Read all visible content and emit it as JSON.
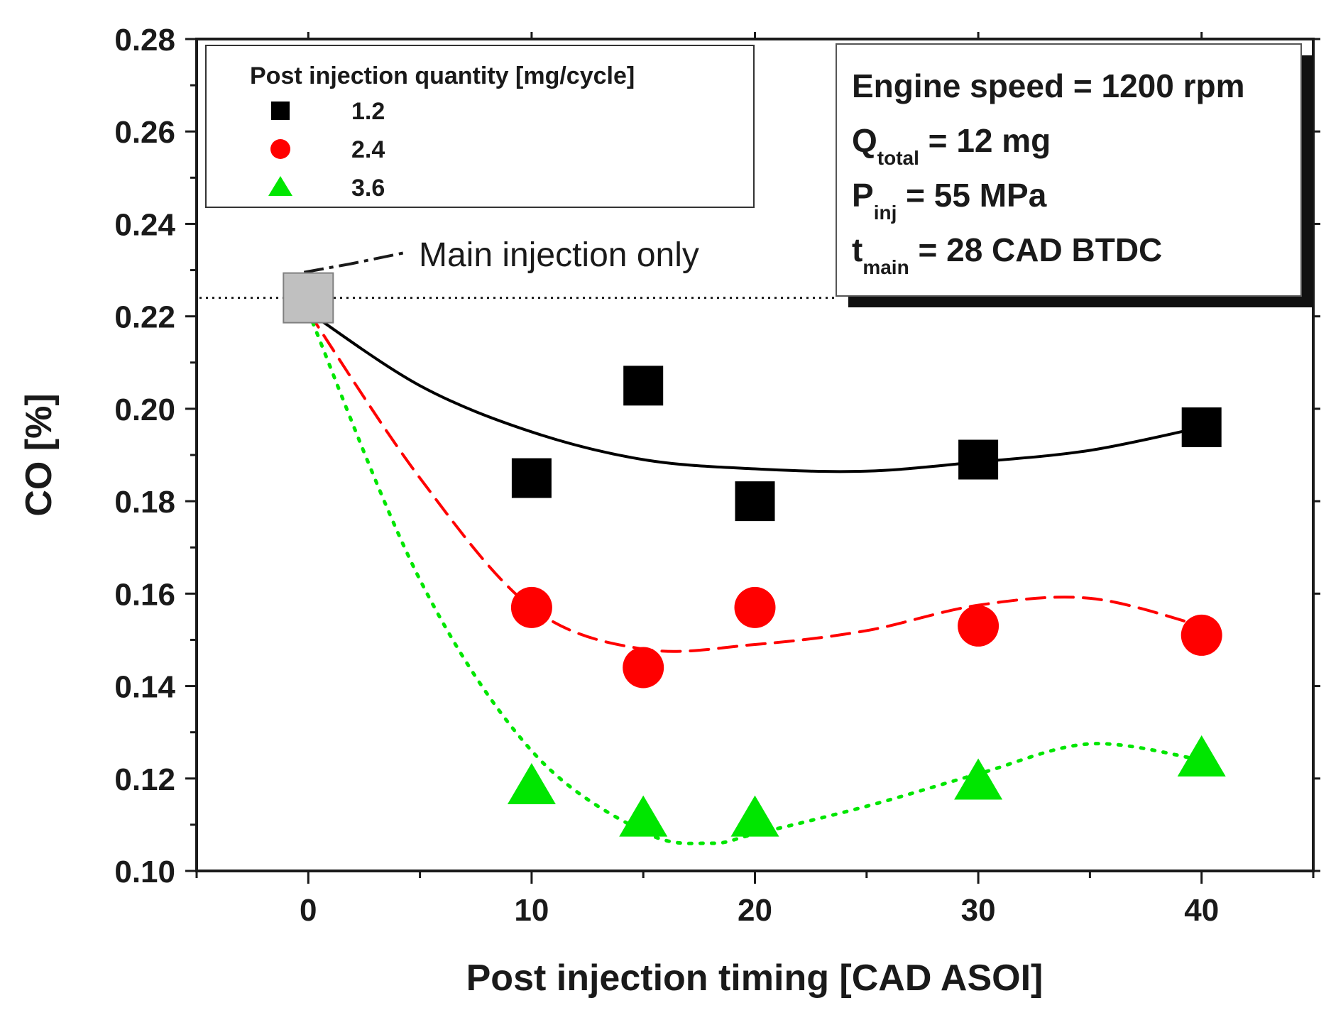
{
  "chart_data": {
    "type": "scatter",
    "title": "",
    "xlabel": "Post injection timing [CAD ASOI]",
    "ylabel": "CO [%]",
    "xlim": [
      -5,
      45
    ],
    "ylim": [
      0.1,
      0.28
    ],
    "x_ticks": [
      0,
      10,
      20,
      30,
      40
    ],
    "x_tick_labels": [
      "0",
      "10",
      "20",
      "30",
      "40"
    ],
    "x_minor_ticks": [
      -5,
      5,
      15,
      25,
      35,
      45
    ],
    "y_ticks": [
      0.1,
      0.12,
      0.14,
      0.16,
      0.18,
      0.2,
      0.22,
      0.24,
      0.26,
      0.28
    ],
    "y_tick_labels": [
      "0.10",
      "0.12",
      "0.14",
      "0.16",
      "0.18",
      "0.20",
      "0.22",
      "0.24",
      "0.26",
      "0.28"
    ],
    "legend": {
      "title": "Post injection quantity [mg/cycle]",
      "placement": "top-left"
    },
    "series": [
      {
        "name": "1.2",
        "marker": "square",
        "color": "#000000",
        "line_style": "solid",
        "x": [
          10,
          15,
          20,
          30,
          40
        ],
        "values": [
          0.185,
          0.205,
          0.18,
          0.189,
          0.196
        ],
        "fit_x": [
          0,
          5,
          10,
          15,
          20,
          25,
          30,
          35,
          40
        ],
        "fit_y": [
          0.221,
          0.205,
          0.195,
          0.189,
          0.187,
          0.1865,
          0.1885,
          0.191,
          0.196
        ]
      },
      {
        "name": "2.4",
        "marker": "circle",
        "color": "#ff0000",
        "line_style": "dashed",
        "x": [
          10,
          15,
          20,
          30,
          40
        ],
        "values": [
          0.157,
          0.144,
          0.157,
          0.153,
          0.151
        ],
        "fit_x": [
          0,
          5,
          10,
          15,
          20,
          25,
          30,
          35,
          40
        ],
        "fit_y": [
          0.221,
          0.185,
          0.157,
          0.148,
          0.149,
          0.152,
          0.1575,
          0.159,
          0.153
        ]
      },
      {
        "name": "3.6",
        "marker": "triangle",
        "color": "#00e600",
        "line_style": "dotted",
        "x": [
          10,
          15,
          20,
          30,
          40
        ],
        "values": [
          0.118,
          0.111,
          0.111,
          0.119,
          0.124
        ],
        "fit_x": [
          0,
          5,
          10,
          15,
          18,
          20,
          25,
          30,
          35,
          40
        ],
        "fit_y": [
          0.221,
          0.163,
          0.126,
          0.1085,
          0.106,
          0.108,
          0.114,
          0.121,
          0.1275,
          0.124
        ]
      }
    ],
    "reference": {
      "label": "Main injection only",
      "x": 0,
      "y": 0.224,
      "marker_color": "#c0c0c0"
    },
    "info_box": {
      "lines": [
        {
          "main": "Engine speed = 1200 rpm",
          "sub": "",
          "rest": ""
        },
        {
          "main": "Q",
          "sub": "total",
          "rest": " = 12 mg"
        },
        {
          "main": "P",
          "sub": "inj",
          "rest": " = 55 MPa"
        },
        {
          "main": "t",
          "sub": "main",
          "rest": " = 28 CAD BTDC"
        }
      ]
    }
  }
}
